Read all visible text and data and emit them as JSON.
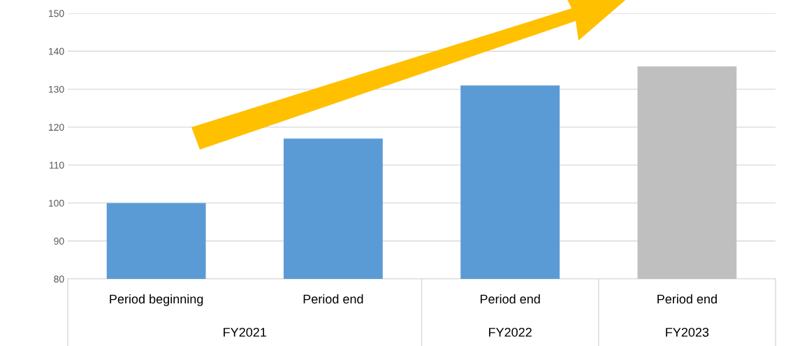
{
  "chart_data": {
    "type": "bar",
    "categories": [
      "Period beginning",
      "Period end",
      "Period end",
      "Period end"
    ],
    "values": [
      100,
      117,
      131,
      136
    ],
    "colors": [
      "#5b9bd5",
      "#5b9bd5",
      "#5b9bd5",
      "#bfbfbf"
    ],
    "ylim": [
      80,
      150
    ],
    "yticks": [
      80,
      90,
      100,
      110,
      120,
      130,
      140,
      150
    ],
    "grid": "y",
    "annotations": [
      "FY2021",
      "FY2022",
      "FY2023"
    ]
  }
}
